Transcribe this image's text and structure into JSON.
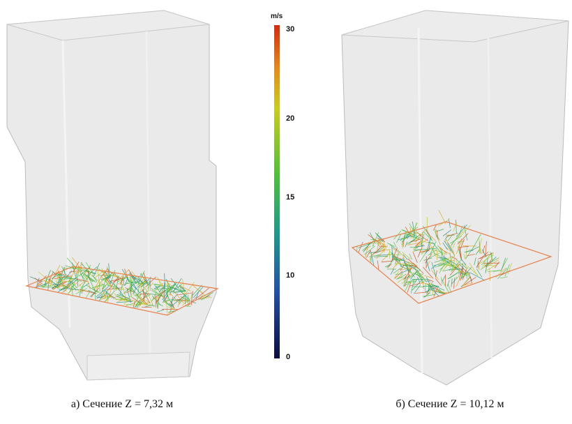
{
  "colorbar": {
    "unit": "m/s",
    "ticks": [
      "30",
      "20",
      "15",
      "10",
      "0"
    ]
  },
  "captions": [
    "а) Сечение Z = 7,32 м",
    "б) Сечение Z = 10,12 м"
  ]
}
